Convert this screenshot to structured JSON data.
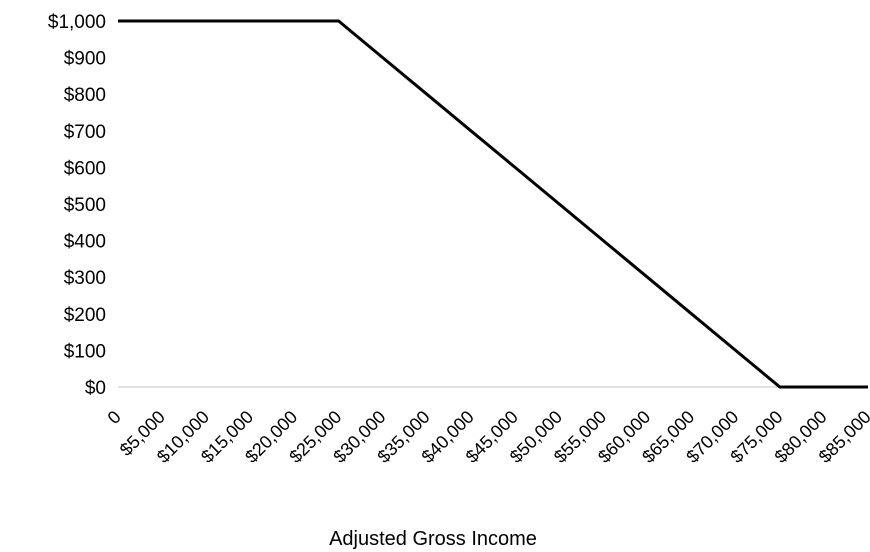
{
  "chart_data": {
    "type": "line",
    "title": "",
    "xlabel": "Adjusted Gross Income",
    "ylabel": "",
    "x": [
      0,
      5000,
      10000,
      15000,
      20000,
      25000,
      30000,
      35000,
      40000,
      45000,
      50000,
      55000,
      60000,
      65000,
      70000,
      75000,
      80000,
      85000
    ],
    "x_tick_labels": [
      "0",
      "$5,000",
      "$10,000",
      "$15,000",
      "$20,000",
      "$25,000",
      "$30,000",
      "$35,000",
      "$40,000",
      "$45,000",
      "$50,000",
      "$55,000",
      "$60,000",
      "$65,000",
      "$70,000",
      "$75,000",
      "$80,000",
      "$85,000"
    ],
    "y_tick_labels": [
      "$0",
      "$100",
      "$200",
      "$300",
      "$400",
      "$500",
      "$600",
      "$700",
      "$800",
      "$900",
      "$1,000"
    ],
    "y_tick_values": [
      0,
      100,
      200,
      300,
      400,
      500,
      600,
      700,
      800,
      900,
      1000
    ],
    "ylim": [
      0,
      1000
    ],
    "series": [
      {
        "values": [
          1000,
          1000,
          1000,
          1000,
          1000,
          1000,
          900,
          800,
          700,
          600,
          500,
          400,
          300,
          200,
          100,
          0,
          0,
          0
        ]
      }
    ],
    "grid": false,
    "colors": {
      "line": "#000000",
      "baseline": "#d9d9d9"
    }
  }
}
